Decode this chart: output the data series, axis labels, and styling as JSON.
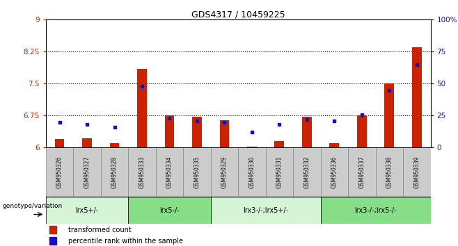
{
  "title": "GDS4317 / 10459225",
  "samples": [
    "GSM950326",
    "GSM950327",
    "GSM950328",
    "GSM950333",
    "GSM950334",
    "GSM950335",
    "GSM950329",
    "GSM950330",
    "GSM950331",
    "GSM950332",
    "GSM950336",
    "GSM950337",
    "GSM950338",
    "GSM950339"
  ],
  "red_values": [
    6.2,
    6.22,
    6.1,
    7.85,
    6.75,
    6.72,
    6.65,
    6.02,
    6.15,
    6.72,
    6.1,
    6.75,
    7.5,
    8.35
  ],
  "blue_values": [
    20,
    18,
    16,
    48,
    23,
    21,
    20,
    12,
    18,
    22,
    21,
    26,
    45,
    65
  ],
  "ylim_left": [
    6,
    9
  ],
  "ylim_right": [
    0,
    100
  ],
  "yticks_left": [
    6,
    6.75,
    7.5,
    8.25,
    9
  ],
  "yticks_right": [
    0,
    25,
    50,
    75,
    100
  ],
  "ytick_labels_left": [
    "6",
    "6.75",
    "7.5",
    "8.25",
    "9"
  ],
  "ytick_labels_right": [
    "0",
    "25",
    "50",
    "75",
    "100%"
  ],
  "hlines": [
    6.75,
    7.5,
    8.25
  ],
  "groups": [
    {
      "label": "lrx5+/-",
      "start": 0,
      "end": 3,
      "color": "#d6f5d6"
    },
    {
      "label": "lrx5-/-",
      "start": 3,
      "end": 6,
      "color": "#88dd88"
    },
    {
      "label": "lrx3-/-;lrx5+/-",
      "start": 6,
      "end": 10,
      "color": "#d6f5d6"
    },
    {
      "label": "lrx3-/-;lrx5-/-",
      "start": 10,
      "end": 14,
      "color": "#88dd88"
    }
  ],
  "bar_color_red": "#cc2200",
  "bar_color_blue": "#1111cc",
  "base_value": 6,
  "bar_width": 0.35,
  "genotype_label": "genotype/variation",
  "legend_red": "transformed count",
  "legend_blue": "percentile rank within the sample",
  "tick_color_left": "#cc2200",
  "tick_color_right": "#1111cc",
  "sample_bg_color": "#cccccc",
  "fig_width": 6.58,
  "fig_height": 3.54
}
